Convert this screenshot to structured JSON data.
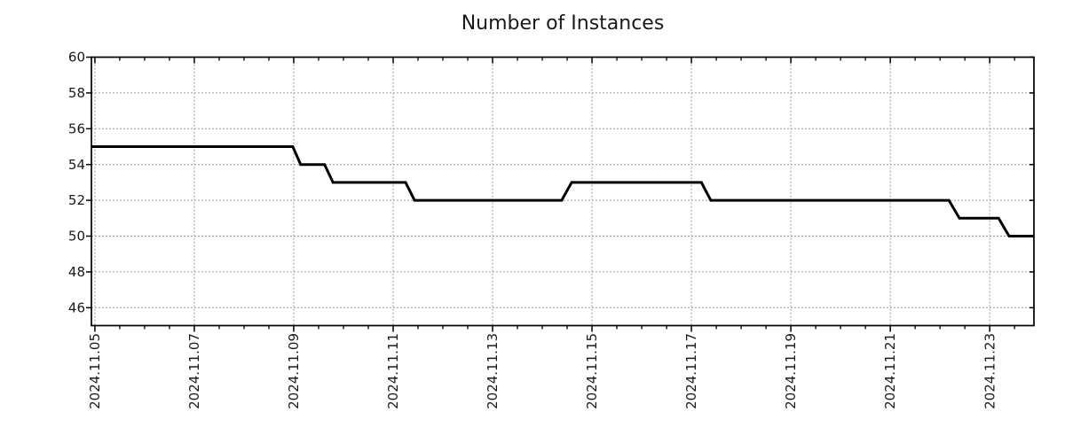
{
  "chart_data": {
    "type": "line",
    "title": "Number of Instances",
    "xlabel": "",
    "ylabel": "",
    "grid": true,
    "legend": "none",
    "line_color": "#000000",
    "line_width": 3,
    "grid_color": "#9c9c9c",
    "axis_color": "#000000",
    "x_tick_labels": [
      "2024.11.05",
      "2024.11.07",
      "2024.11.09",
      "2024.11.11",
      "2024.11.13",
      "2024.11.15",
      "2024.11.17",
      "2024.11.19",
      "2024.11.21",
      "2024.11.23"
    ],
    "x_tick_days": [
      5,
      7,
      9,
      11,
      13,
      15,
      17,
      19,
      21,
      23
    ],
    "x_minor_tick_step_days": 0.5,
    "xlim_days_of_november_2024": [
      4.93,
      23.89
    ],
    "y_ticks": [
      60,
      58,
      56,
      54,
      52,
      50,
      48,
      46
    ],
    "ylim": [
      45,
      60
    ],
    "series": [
      {
        "name": "Number of Instances",
        "points_day_value": [
          [
            4.93,
            55
          ],
          [
            8.98,
            55
          ],
          [
            9.14,
            54
          ],
          [
            9.62,
            54
          ],
          [
            9.79,
            53
          ],
          [
            11.25,
            53
          ],
          [
            11.43,
            52
          ],
          [
            14.39,
            52
          ],
          [
            14.59,
            53
          ],
          [
            17.2,
            53
          ],
          [
            17.39,
            52
          ],
          [
            22.18,
            52
          ],
          [
            22.39,
            51
          ],
          [
            23.18,
            51
          ],
          [
            23.39,
            50
          ],
          [
            23.89,
            50
          ]
        ]
      }
    ],
    "step_segments": [
      {
        "value": 55,
        "from": "2024.11.05 (plot start)",
        "to": "2024.11.09 ~00:00"
      },
      {
        "value": 54,
        "from": "2024.11.09 ~03:20",
        "to": "2024.11.09 ~15:00"
      },
      {
        "value": 53,
        "from": "2024.11.09 ~19:00",
        "to": "2024.11.11 ~06:00"
      },
      {
        "value": 52,
        "from": "2024.11.11 ~10:20",
        "to": "2024.11.14 ~09:20"
      },
      {
        "value": 53,
        "from": "2024.11.14 ~14:10",
        "to": "2024.11.17 ~04:50"
      },
      {
        "value": 52,
        "from": "2024.11.17 ~09:20",
        "to": "2024.11.22 ~04:20"
      },
      {
        "value": 51,
        "from": "2024.11.22 ~09:20",
        "to": "2024.11.23 ~04:20"
      },
      {
        "value": 50,
        "from": "2024.11.23 ~09:20",
        "to": "2024.11.23 ~21:20 (plot end)"
      }
    ]
  }
}
